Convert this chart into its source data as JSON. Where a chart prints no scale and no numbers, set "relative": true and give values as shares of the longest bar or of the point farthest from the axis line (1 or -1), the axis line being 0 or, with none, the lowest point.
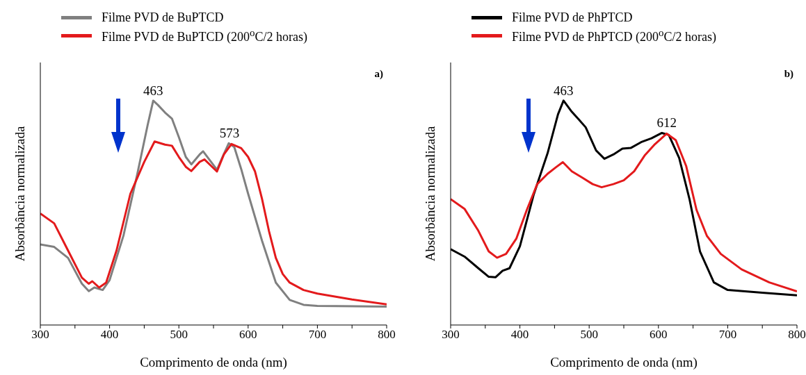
{
  "chart_data": [
    {
      "type": "line",
      "xlabel": "Comprimento de onda (nm)",
      "ylabel": "Absorbância normalizada",
      "relative": true,
      "legend": "top",
      "xlim": [
        300,
        800
      ],
      "xticks": [
        300,
        {
          "value": 350,
          "label": null
        },
        400,
        {
          "value": 450,
          "label": null
        },
        500,
        {
          "value": 550,
          "label": null
        },
        600,
        {
          "value": 650,
          "label": null
        },
        700,
        {
          "value": 750,
          "label": null
        },
        800
      ],
      "annotations": [
        "a)",
        {
          "text": "463",
          "x": 463,
          "y": 1
        },
        {
          "text": "573",
          "x": 573,
          "y": 0.81
        }
      ],
      "series": [
        {
          "name": "Filme PVD de BuPTCD",
          "color": "#808080",
          "x": [
            300,
            320,
            340,
            360,
            370,
            378,
            390,
            400,
            420,
            440,
            455,
            463,
            470,
            480,
            490,
            500,
            510,
            518,
            530,
            535,
            545,
            555,
            563,
            572,
            580,
            590,
            600,
            620,
            640,
            660,
            680,
            700,
            800
          ],
          "values": [
            0.359,
            0.348,
            0.299,
            0.184,
            0.151,
            0.167,
            0.156,
            0.2,
            0.398,
            0.673,
            0.892,
            1,
            0.98,
            0.947,
            0.92,
            0.837,
            0.749,
            0.716,
            0.76,
            0.774,
            0.733,
            0.692,
            0.749,
            0.81,
            0.793,
            0.695,
            0.585,
            0.376,
            0.189,
            0.112,
            0.09,
            0.085,
            0.082
          ]
        },
        {
          "name": "Filme PVD de BuPTCD (200$^{o}$C/2 horas)",
          "color": "#e31a1c",
          "x": [
            300,
            320,
            340,
            360,
            370,
            375,
            385,
            395,
            410,
            430,
            450,
            465,
            480,
            490,
            500,
            510,
            518,
            530,
            537,
            548,
            555,
            565,
            576,
            590,
            600,
            610,
            620,
            630,
            640,
            650,
            660,
            680,
            700,
            750,
            800
          ],
          "values": [
            0.497,
            0.453,
            0.332,
            0.211,
            0.184,
            0.195,
            0.167,
            0.189,
            0.332,
            0.585,
            0.727,
            0.818,
            0.804,
            0.799,
            0.749,
            0.705,
            0.686,
            0.727,
            0.738,
            0.705,
            0.684,
            0.76,
            0.807,
            0.788,
            0.749,
            0.684,
            0.563,
            0.42,
            0.299,
            0.227,
            0.189,
            0.156,
            0.14,
            0.114,
            0.092
          ]
        }
      ]
    },
    {
      "type": "line",
      "xlabel": "Comprimento de onda (nm)",
      "ylabel": "Absorbância normalizada",
      "relative": true,
      "legend": "top",
      "xlim": [
        300,
        800
      ],
      "xticks": [
        300,
        {
          "value": 350,
          "label": null
        },
        400,
        {
          "value": 450,
          "label": null
        },
        500,
        {
          "value": 550,
          "label": null
        },
        600,
        {
          "value": 650,
          "label": null
        },
        700,
        {
          "value": 750,
          "label": null
        },
        800
      ],
      "annotations": [
        "b)",
        {
          "text": "463",
          "x": 463,
          "y": 1
        },
        {
          "text": "612",
          "x": 612,
          "y": 0.856
        }
      ],
      "series": [
        {
          "name": "Filme PVD de PhPTCD",
          "color": "#000000",
          "x": [
            300,
            320,
            340,
            355,
            365,
            375,
            385,
            400,
            420,
            440,
            455,
            463,
            475,
            485,
            495,
            510,
            522,
            535,
            548,
            560,
            575,
            590,
            605,
            615,
            630,
            645,
            660,
            680,
            700,
            750,
            800
          ],
          "values": [
            0.338,
            0.305,
            0.253,
            0.215,
            0.213,
            0.242,
            0.253,
            0.351,
            0.582,
            0.766,
            0.939,
            1,
            0.95,
            0.916,
            0.881,
            0.778,
            0.741,
            0.76,
            0.786,
            0.789,
            0.815,
            0.832,
            0.856,
            0.847,
            0.744,
            0.559,
            0.328,
            0.19,
            0.156,
            0.144,
            0.132
          ]
        },
        {
          "name": "Filme PVD de PhPTCD (200$^{o}$C/2 horas)",
          "color": "#e31a1c",
          "x": [
            300,
            320,
            340,
            355,
            367,
            380,
            395,
            410,
            425,
            440,
            452,
            462,
            475,
            490,
            505,
            518,
            535,
            550,
            565,
            580,
            595,
            612,
            625,
            640,
            655,
            670,
            690,
            720,
            760,
            800
          ],
          "values": [
            0.561,
            0.518,
            0.42,
            0.328,
            0.3,
            0.317,
            0.386,
            0.513,
            0.628,
            0.674,
            0.703,
            0.726,
            0.685,
            0.657,
            0.628,
            0.614,
            0.628,
            0.645,
            0.685,
            0.755,
            0.806,
            0.853,
            0.824,
            0.709,
            0.513,
            0.397,
            0.317,
            0.248,
            0.19,
            0.15
          ]
        }
      ]
    }
  ]
}
